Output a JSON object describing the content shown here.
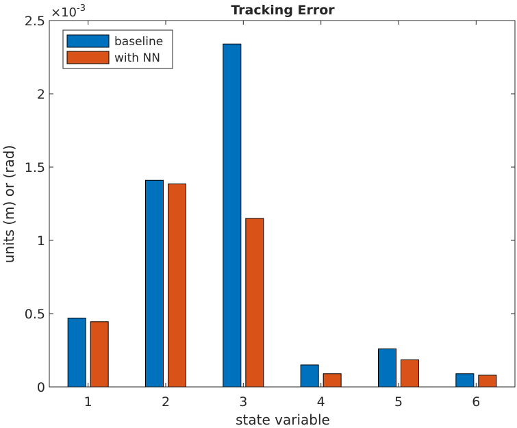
{
  "chart_data": {
    "type": "bar",
    "title": "Tracking Error",
    "xlabel": "state variable",
    "ylabel": "units (m) or (rad)",
    "categories": [
      "1",
      "2",
      "3",
      "4",
      "5",
      "6"
    ],
    "series": [
      {
        "name": "baseline",
        "color": "#0072bd",
        "values": [
          0.00047,
          0.00141,
          0.00234,
          0.00015,
          0.00026,
          9e-05
        ]
      },
      {
        "name": "with NN",
        "color": "#d95319",
        "values": [
          0.000445,
          0.001385,
          0.00115,
          9e-05,
          0.000185,
          8e-05
        ]
      }
    ],
    "ylim": [
      0,
      0.0025
    ],
    "yticks": [
      0,
      0.0005,
      0.001,
      0.0015,
      0.002,
      0.0025
    ],
    "ytick_labels": [
      "0",
      "0.5",
      "1",
      "1.5",
      "2",
      "2.5"
    ],
    "y_exponent_label": "×10",
    "y_exponent_power": "-3",
    "grid": false,
    "legend_position": "top-left"
  }
}
